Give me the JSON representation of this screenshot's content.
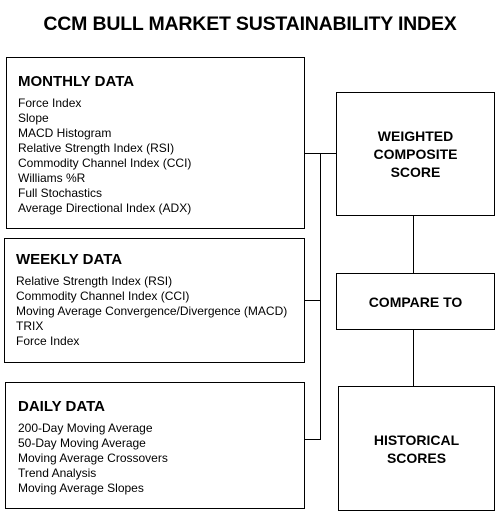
{
  "title": "CCM BULL MARKET SUSTAINABILITY INDEX",
  "monthly": {
    "heading": "MONTHLY DATA",
    "items": [
      "Force Index",
      "Slope",
      "MACD Histogram",
      "Relative Strength Index (RSI)",
      "Commodity Channel Index (CCI)",
      "Williams %R",
      "Full Stochastics",
      "Average Directional Index (ADX)"
    ]
  },
  "weekly": {
    "heading": "WEEKLY DATA",
    "items": [
      "Relative Strength Index (RSI)",
      "Commodity Channel Index (CCI)",
      "Moving Average Convergence/Divergence (MACD)",
      "TRIX",
      "Force Index"
    ]
  },
  "daily": {
    "heading": "DAILY DATA",
    "items": [
      "200-Day Moving Average",
      "50-Day Moving Average",
      "Moving Average Crossovers",
      "Trend Analysis",
      "Moving Average Slopes"
    ]
  },
  "weighted": {
    "line1": "WEIGHTED",
    "line2": "COMPOSITE",
    "line3": "SCORE"
  },
  "compare": {
    "label": "COMPARE TO"
  },
  "historical": {
    "line1": "HISTORICAL",
    "line2": "SCORES"
  }
}
